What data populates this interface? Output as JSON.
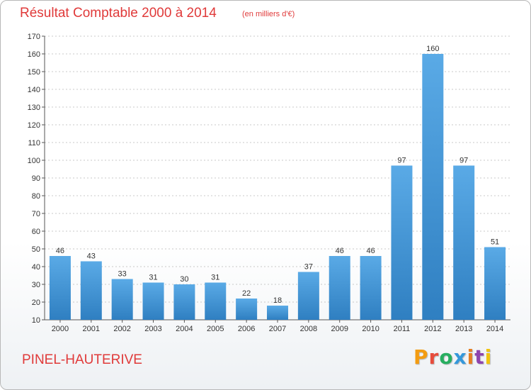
{
  "header": {
    "title": "Résultat Comptable 2000 à 2014",
    "subtitle": "(en milliers d'€)"
  },
  "footer": {
    "location": "PINEL-HAUTERIVE",
    "logo_text": "Proxiti",
    "logo_colors": [
      "#f39c12",
      "#e74c3c",
      "#27ae60",
      "#3498db",
      "#e67e22",
      "#8e44ad",
      "#f1c40f"
    ]
  },
  "colors": {
    "bar_top": "#5aaae6",
    "bar_bottom": "#2f7fc1",
    "title": "#e03a3a",
    "grid": "#c8c8c8"
  },
  "chart_data": {
    "type": "bar",
    "title": "Résultat Comptable 2000 à 2014",
    "subtitle": "(en milliers d'€)",
    "xlabel": "",
    "ylabel": "",
    "categories": [
      "2000",
      "2001",
      "2002",
      "2003",
      "2004",
      "2005",
      "2006",
      "2007",
      "2008",
      "2009",
      "2010",
      "2011",
      "2012",
      "2013",
      "2014"
    ],
    "values": [
      46,
      43,
      33,
      31,
      30,
      31,
      22,
      18,
      37,
      46,
      46,
      97,
      160,
      97,
      51
    ],
    "ylim": [
      10,
      170
    ],
    "yticks": [
      10,
      20,
      30,
      40,
      50,
      60,
      70,
      80,
      90,
      100,
      110,
      120,
      130,
      140,
      150,
      160,
      170
    ],
    "grid": true,
    "data_labels": true
  }
}
